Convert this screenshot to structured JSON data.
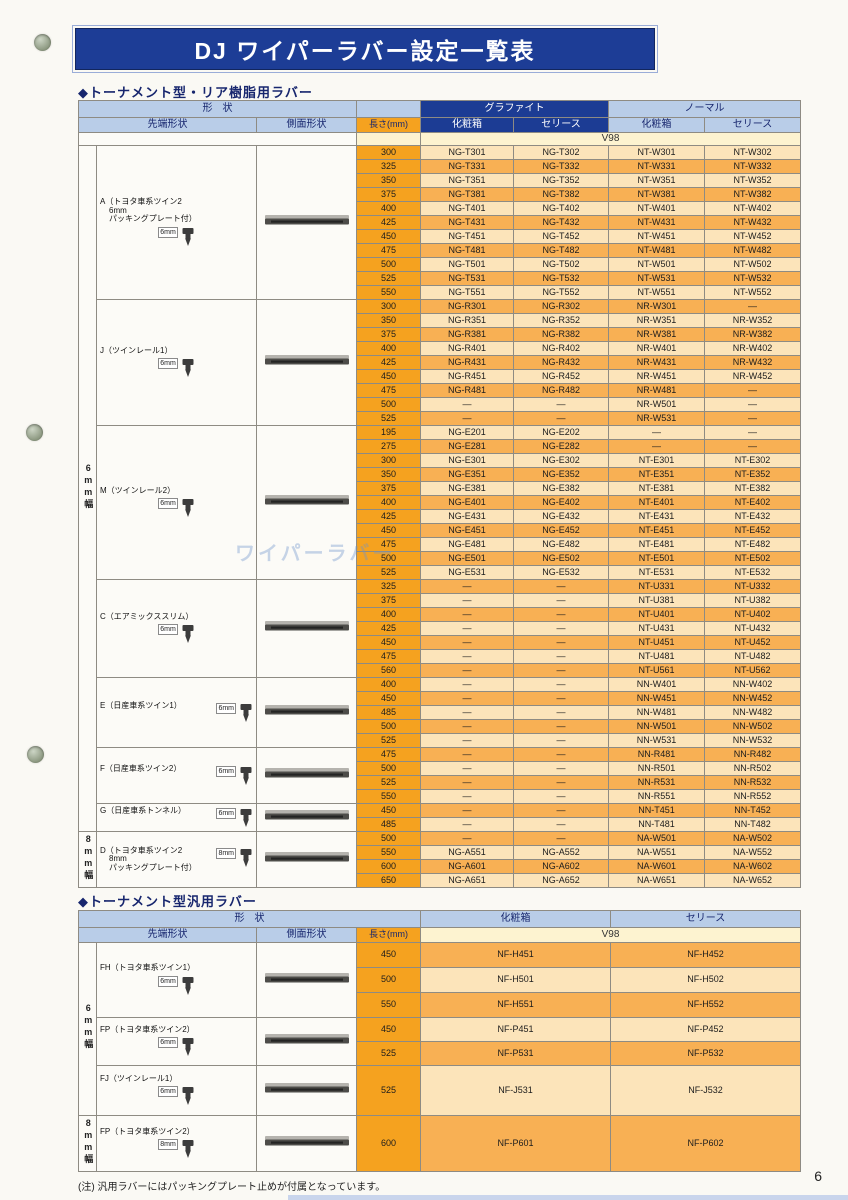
{
  "page": {
    "title": "DJ ワイパーラバー設定一覧表",
    "footnote": "(注) 汎用ラバーにはパッキングプレート止めが付属となっています。",
    "page_number": "6",
    "watermark": "ワイパーラバー"
  },
  "colors": {
    "banner_blue": "#1d3d96",
    "header_light_blue": "#b9cde8",
    "length_orange": "#f5a21f",
    "row_light": "#fce4ba",
    "row_dark": "#f8b054",
    "v98_cream": "#fdf3d0"
  },
  "icons": {
    "tip_cross_section": "wiper-tip-cross-section-icon",
    "side_profile": "wiper-side-profile-icon",
    "binder_hole": "binder-hole-icon"
  },
  "header_labels": {
    "shape": "形　状",
    "tip": "先端形状",
    "side": "側面形状",
    "length": "長さ(mm)",
    "graphite": "グラファイト",
    "normal": "ノーマル",
    "box": "化粧箱",
    "series": "セリース",
    "v98": "V98"
  },
  "section1": {
    "heading": "◆トーナメント型・リア樹脂用ラバー",
    "bands": [
      {
        "label": "6mm幅",
        "group_count": 7
      },
      {
        "label": "8mm幅",
        "group_count": 1
      }
    ],
    "groups": [
      {
        "name_lines": [
          "A（トヨタ車系ツイン2",
          "6mm",
          "パッキングプレート付）"
        ],
        "tip_size": "6mm",
        "rows": [
          {
            "len": "300",
            "parts": [
              "NG-T301",
              "NG-T302",
              "NT-W301",
              "NT-W302"
            ]
          },
          {
            "len": "325",
            "parts": [
              "NG-T331",
              "NG-T332",
              "NT-W331",
              "NT-W332"
            ]
          },
          {
            "len": "350",
            "parts": [
              "NG-T351",
              "NG-T352",
              "NT-W351",
              "NT-W352"
            ]
          },
          {
            "len": "375",
            "parts": [
              "NG-T381",
              "NG-T382",
              "NT-W381",
              "NT-W382"
            ]
          },
          {
            "len": "400",
            "parts": [
              "NG-T401",
              "NG-T402",
              "NT-W401",
              "NT-W402"
            ]
          },
          {
            "len": "425",
            "parts": [
              "NG-T431",
              "NG-T432",
              "NT-W431",
              "NT-W432"
            ]
          },
          {
            "len": "450",
            "parts": [
              "NG-T451",
              "NG-T452",
              "NT-W451",
              "NT-W452"
            ]
          },
          {
            "len": "475",
            "parts": [
              "NG-T481",
              "NG-T482",
              "NT-W481",
              "NT-W482"
            ]
          },
          {
            "len": "500",
            "parts": [
              "NG-T501",
              "NG-T502",
              "NT-W501",
              "NT-W502"
            ]
          },
          {
            "len": "525",
            "parts": [
              "NG-T531",
              "NG-T532",
              "NT-W531",
              "NT-W532"
            ]
          },
          {
            "len": "550",
            "parts": [
              "NG-T551",
              "NG-T552",
              "NT-W551",
              "NT-W552"
            ]
          }
        ]
      },
      {
        "name_lines": [
          "J（ツインレール1）"
        ],
        "tip_size": "6mm",
        "rows": [
          {
            "len": "300",
            "parts": [
              "NG-R301",
              "NG-R302",
              "NR-W301",
              "—"
            ]
          },
          {
            "len": "350",
            "parts": [
              "NG-R351",
              "NG-R352",
              "NR-W351",
              "NR-W352"
            ]
          },
          {
            "len": "375",
            "parts": [
              "NG-R381",
              "NG-R382",
              "NR-W381",
              "NR-W382"
            ]
          },
          {
            "len": "400",
            "parts": [
              "NG-R401",
              "NG-R402",
              "NR-W401",
              "NR-W402"
            ]
          },
          {
            "len": "425",
            "parts": [
              "NG-R431",
              "NG-R432",
              "NR-W431",
              "NR-W432"
            ]
          },
          {
            "len": "450",
            "parts": [
              "NG-R451",
              "NG-R452",
              "NR-W451",
              "NR-W452"
            ]
          },
          {
            "len": "475",
            "parts": [
              "NG-R481",
              "NG-R482",
              "NR-W481",
              "—"
            ]
          },
          {
            "len": "500",
            "parts": [
              "—",
              "—",
              "NR-W501",
              "—"
            ]
          },
          {
            "len": "525",
            "parts": [
              "—",
              "—",
              "NR-W531",
              "—"
            ]
          }
        ]
      },
      {
        "name_lines": [
          "M（ツインレール2）"
        ],
        "tip_size": "6mm",
        "rows": [
          {
            "len": "195",
            "parts": [
              "NG-E201",
              "NG-E202",
              "—",
              "—"
            ]
          },
          {
            "len": "275",
            "parts": [
              "NG-E281",
              "NG-E282",
              "—",
              "—"
            ]
          },
          {
            "len": "300",
            "parts": [
              "NG-E301",
              "NG-E302",
              "NT-E301",
              "NT-E302"
            ]
          },
          {
            "len": "350",
            "parts": [
              "NG-E351",
              "NG-E352",
              "NT-E351",
              "NT-E352"
            ]
          },
          {
            "len": "375",
            "parts": [
              "NG-E381",
              "NG-E382",
              "NT-E381",
              "NT-E382"
            ]
          },
          {
            "len": "400",
            "parts": [
              "NG-E401",
              "NG-E402",
              "NT-E401",
              "NT-E402"
            ]
          },
          {
            "len": "425",
            "parts": [
              "NG-E431",
              "NG-E432",
              "NT-E431",
              "NT-E432"
            ]
          },
          {
            "len": "450",
            "parts": [
              "NG-E451",
              "NG-E452",
              "NT-E451",
              "NT-E452"
            ]
          },
          {
            "len": "475",
            "parts": [
              "NG-E481",
              "NG-E482",
              "NT-E481",
              "NT-E482"
            ]
          },
          {
            "len": "500",
            "parts": [
              "NG-E501",
              "NG-E502",
              "NT-E501",
              "NT-E502"
            ]
          },
          {
            "len": "525",
            "parts": [
              "NG-E531",
              "NG-E532",
              "NT-E531",
              "NT-E532"
            ]
          }
        ]
      },
      {
        "name_lines": [
          "C（エアミックススリム）"
        ],
        "tip_size": "6mm",
        "rows": [
          {
            "len": "325",
            "parts": [
              "—",
              "—",
              "NT-U331",
              "NT-U332"
            ]
          },
          {
            "len": "375",
            "parts": [
              "—",
              "—",
              "NT-U381",
              "NT-U382"
            ]
          },
          {
            "len": "400",
            "parts": [
              "—",
              "—",
              "NT-U401",
              "NT-U402"
            ]
          },
          {
            "len": "425",
            "parts": [
              "—",
              "—",
              "NT-U431",
              "NT-U432"
            ]
          },
          {
            "len": "450",
            "parts": [
              "—",
              "—",
              "NT-U451",
              "NT-U452"
            ]
          },
          {
            "len": "475",
            "parts": [
              "—",
              "—",
              "NT-U481",
              "NT-U482"
            ]
          },
          {
            "len": "560",
            "parts": [
              "—",
              "—",
              "NT-U561",
              "NT-U562"
            ]
          }
        ]
      },
      {
        "name_lines": [
          "E（日産車系ツイン1）"
        ],
        "tip_size": "6mm",
        "rows": [
          {
            "len": "400",
            "parts": [
              "—",
              "—",
              "NN-W401",
              "NN-W402"
            ]
          },
          {
            "len": "450",
            "parts": [
              "—",
              "—",
              "NN-W451",
              "NN-W452"
            ]
          },
          {
            "len": "485",
            "parts": [
              "—",
              "—",
              "NN-W481",
              "NN-W482"
            ]
          },
          {
            "len": "500",
            "parts": [
              "—",
              "—",
              "NN-W501",
              "NN-W502"
            ]
          },
          {
            "len": "525",
            "parts": [
              "—",
              "—",
              "NN-W531",
              "NN-W532"
            ]
          }
        ]
      },
      {
        "name_lines": [
          "F（日産車系ツイン2）"
        ],
        "tip_size": "6mm",
        "rows": [
          {
            "len": "475",
            "parts": [
              "—",
              "—",
              "NN-R481",
              "NN-R482"
            ]
          },
          {
            "len": "500",
            "parts": [
              "—",
              "—",
              "NN-R501",
              "NN-R502"
            ]
          },
          {
            "len": "525",
            "parts": [
              "—",
              "—",
              "NN-R531",
              "NN-R532"
            ]
          },
          {
            "len": "550",
            "parts": [
              "—",
              "—",
              "NN-R551",
              "NN-R552"
            ]
          }
        ]
      },
      {
        "name_lines": [
          "G（日産車系トンネル）"
        ],
        "tip_size": "6mm",
        "rows": [
          {
            "len": "450",
            "parts": [
              "—",
              "—",
              "NN-T451",
              "NN-T452"
            ]
          },
          {
            "len": "485",
            "parts": [
              "—",
              "—",
              "NN-T481",
              "NN-T482"
            ]
          }
        ]
      },
      {
        "name_lines": [
          "D（トヨタ車系ツイン2",
          "8mm",
          "パッキングプレート付）"
        ],
        "tip_size": "8mm",
        "rows": [
          {
            "len": "500",
            "parts": [
              "—",
              "—",
              "NA-W501",
              "NA-W502"
            ]
          },
          {
            "len": "550",
            "parts": [
              "NG-A551",
              "NG-A552",
              "NA-W551",
              "NA-W552"
            ]
          },
          {
            "len": "600",
            "parts": [
              "NG-A601",
              "NG-A602",
              "NA-W601",
              "NA-W602"
            ]
          },
          {
            "len": "650",
            "parts": [
              "NG-A651",
              "NG-A652",
              "NA-W651",
              "NA-W652"
            ]
          }
        ]
      }
    ]
  },
  "section2": {
    "heading": "◆トーナメント型汎用ラバー",
    "bands": [
      {
        "label": "6mm幅",
        "group_count": 3
      },
      {
        "label": "8mm幅",
        "group_count": 1
      }
    ],
    "groups": [
      {
        "name_lines": [
          "FH（トヨタ車系ツイン1）"
        ],
        "tip_size": "6mm",
        "rows": [
          {
            "len": "450",
            "parts": [
              "NF-H451",
              "NF-H452"
            ]
          },
          {
            "len": "500",
            "parts": [
              "NF-H501",
              "NF-H502"
            ]
          },
          {
            "len": "550",
            "parts": [
              "NF-H551",
              "NF-H552"
            ]
          }
        ]
      },
      {
        "name_lines": [
          "FP（トヨタ車系ツイン2）"
        ],
        "tip_size": "6mm",
        "rows": [
          {
            "len": "450",
            "parts": [
              "NF-P451",
              "NF-P452"
            ]
          },
          {
            "len": "525",
            "parts": [
              "NF-P531",
              "NF-P532"
            ]
          }
        ]
      },
      {
        "name_lines": [
          "FJ（ツインレール1）"
        ],
        "tip_size": "6mm",
        "rows": [
          {
            "len": "525",
            "parts": [
              "NF-J531",
              "NF-J532"
            ]
          }
        ]
      },
      {
        "name_lines": [
          "FP（トヨタ車系ツイン2）"
        ],
        "tip_size": "8mm",
        "rows": [
          {
            "len": "600",
            "parts": [
              "NF-P601",
              "NF-P602"
            ]
          }
        ]
      }
    ]
  }
}
